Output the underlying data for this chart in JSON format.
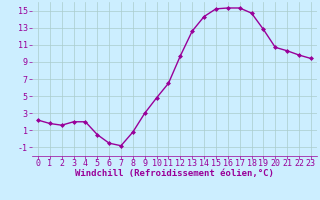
{
  "x": [
    0,
    1,
    2,
    3,
    4,
    5,
    6,
    7,
    8,
    9,
    10,
    11,
    12,
    13,
    14,
    15,
    16,
    17,
    18,
    19,
    20,
    21,
    22,
    23
  ],
  "y": [
    2.2,
    1.8,
    1.6,
    2.0,
    2.0,
    0.5,
    -0.5,
    -0.8,
    0.8,
    3.0,
    4.8,
    6.5,
    9.7,
    12.6,
    14.3,
    15.2,
    15.3,
    15.3,
    14.7,
    12.8,
    10.7,
    10.3,
    9.8,
    9.4
  ],
  "line_color": "#990099",
  "marker": "D",
  "marker_size": 2.0,
  "bg_color": "#cceeff",
  "grid_color": "#aacccc",
  "xlabel": "Windchill (Refroidissement éolien,°C)",
  "xlabel_color": "#990099",
  "tick_color": "#990099",
  "label_color": "#990099",
  "ylim": [
    -2,
    16
  ],
  "xlim": [
    -0.5,
    23.5
  ],
  "yticks": [
    -1,
    1,
    3,
    5,
    7,
    9,
    11,
    13,
    15
  ],
  "xticks": [
    0,
    1,
    2,
    3,
    4,
    5,
    6,
    7,
    8,
    9,
    10,
    11,
    12,
    13,
    14,
    15,
    16,
    17,
    18,
    19,
    20,
    21,
    22,
    23
  ],
  "linewidth": 1.0,
  "font_size": 6.0,
  "xlabel_size": 6.5
}
